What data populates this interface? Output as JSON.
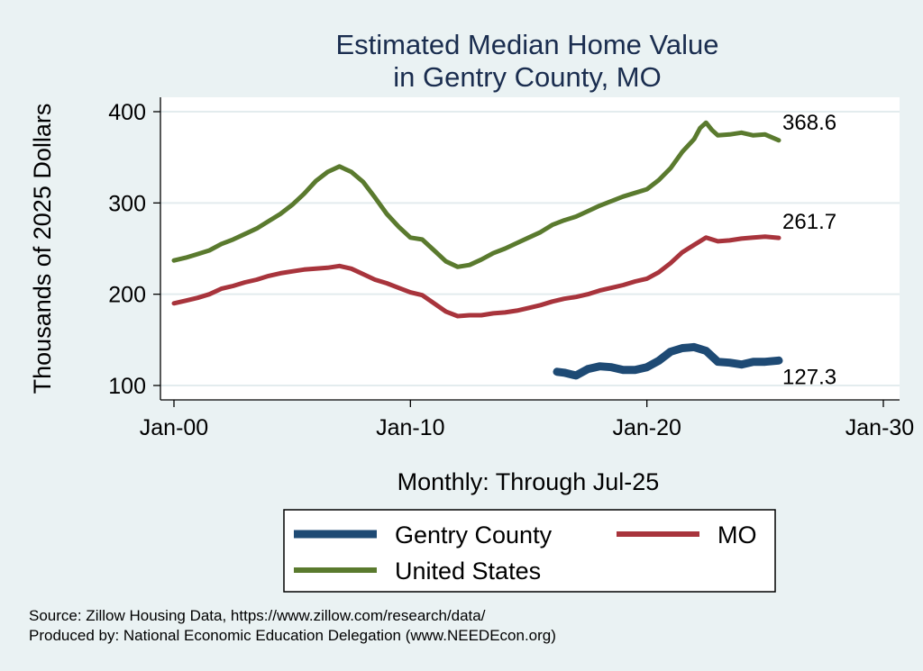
{
  "chart_data": {
    "type": "line",
    "title": [
      "Estimated Median Home Value",
      "in Gentry County, MO"
    ],
    "ylabel": "Thousands of 2025 Dollars",
    "xlabel": "Monthly: Through Jul-25",
    "x_ticks": [
      {
        "label": "Jan-00",
        "year": 2000
      },
      {
        "label": "Jan-10",
        "year": 2010
      },
      {
        "label": "Jan-20",
        "year": 2020
      },
      {
        "label": "Jan-30",
        "year": 2030
      }
    ],
    "y_ticks": [
      100,
      200,
      300,
      400
    ],
    "xlim": [
      2000,
      2030
    ],
    "ylim": [
      100,
      400
    ],
    "grid": "horizontal",
    "series": [
      {
        "name": "United States",
        "color": "#5a7a2e",
        "end_label": "368.6",
        "points": [
          [
            2000.0,
            237
          ],
          [
            2000.5,
            240
          ],
          [
            2001.0,
            244
          ],
          [
            2001.5,
            248
          ],
          [
            2002.0,
            255
          ],
          [
            2002.5,
            260
          ],
          [
            2003.0,
            266
          ],
          [
            2003.5,
            272
          ],
          [
            2004.0,
            280
          ],
          [
            2004.5,
            288
          ],
          [
            2005.0,
            298
          ],
          [
            2005.5,
            310
          ],
          [
            2006.0,
            324
          ],
          [
            2006.5,
            334
          ],
          [
            2007.0,
            340
          ],
          [
            2007.5,
            334
          ],
          [
            2008.0,
            323
          ],
          [
            2008.5,
            306
          ],
          [
            2009.0,
            288
          ],
          [
            2009.5,
            274
          ],
          [
            2010.0,
            262
          ],
          [
            2010.5,
            260
          ],
          [
            2011.0,
            248
          ],
          [
            2011.5,
            236
          ],
          [
            2012.0,
            230
          ],
          [
            2012.5,
            232
          ],
          [
            2013.0,
            238
          ],
          [
            2013.5,
            245
          ],
          [
            2014.0,
            250
          ],
          [
            2014.5,
            256
          ],
          [
            2015.0,
            262
          ],
          [
            2015.5,
            268
          ],
          [
            2016.0,
            276
          ],
          [
            2016.5,
            281
          ],
          [
            2017.0,
            285
          ],
          [
            2017.5,
            291
          ],
          [
            2018.0,
            297
          ],
          [
            2018.5,
            302
          ],
          [
            2019.0,
            307
          ],
          [
            2019.5,
            311
          ],
          [
            2020.0,
            315
          ],
          [
            2020.5,
            325
          ],
          [
            2021.0,
            338
          ],
          [
            2021.5,
            356
          ],
          [
            2022.0,
            370
          ],
          [
            2022.25,
            382
          ],
          [
            2022.5,
            388
          ],
          [
            2022.75,
            380
          ],
          [
            2023.0,
            374
          ],
          [
            2023.5,
            375
          ],
          [
            2024.0,
            377
          ],
          [
            2024.5,
            374
          ],
          [
            2025.0,
            375
          ],
          [
            2025.58,
            368.6
          ]
        ]
      },
      {
        "name": "MO",
        "color": "#a8343c",
        "end_label": "261.7",
        "points": [
          [
            2000.0,
            190
          ],
          [
            2000.5,
            193
          ],
          [
            2001.0,
            196
          ],
          [
            2001.5,
            200
          ],
          [
            2002.0,
            206
          ],
          [
            2002.5,
            209
          ],
          [
            2003.0,
            213
          ],
          [
            2003.5,
            216
          ],
          [
            2004.0,
            220
          ],
          [
            2004.5,
            223
          ],
          [
            2005.0,
            225
          ],
          [
            2005.5,
            227
          ],
          [
            2006.0,
            228
          ],
          [
            2006.5,
            229
          ],
          [
            2007.0,
            231
          ],
          [
            2007.5,
            228
          ],
          [
            2008.0,
            222
          ],
          [
            2008.5,
            216
          ],
          [
            2009.0,
            212
          ],
          [
            2009.5,
            207
          ],
          [
            2010.0,
            202
          ],
          [
            2010.5,
            199
          ],
          [
            2011.0,
            190
          ],
          [
            2011.5,
            181
          ],
          [
            2012.0,
            176
          ],
          [
            2012.5,
            177
          ],
          [
            2013.0,
            177
          ],
          [
            2013.5,
            179
          ],
          [
            2014.0,
            180
          ],
          [
            2014.5,
            182
          ],
          [
            2015.0,
            185
          ],
          [
            2015.5,
            188
          ],
          [
            2016.0,
            192
          ],
          [
            2016.5,
            195
          ],
          [
            2017.0,
            197
          ],
          [
            2017.5,
            200
          ],
          [
            2018.0,
            204
          ],
          [
            2018.5,
            207
          ],
          [
            2019.0,
            210
          ],
          [
            2019.5,
            214
          ],
          [
            2020.0,
            217
          ],
          [
            2020.5,
            224
          ],
          [
            2021.0,
            234
          ],
          [
            2021.5,
            246
          ],
          [
            2022.0,
            254
          ],
          [
            2022.5,
            262
          ],
          [
            2023.0,
            258
          ],
          [
            2023.5,
            259
          ],
          [
            2024.0,
            261
          ],
          [
            2024.5,
            262
          ],
          [
            2025.0,
            263
          ],
          [
            2025.58,
            261.7
          ]
        ]
      },
      {
        "name": "Gentry County",
        "color": "#1e4a74",
        "end_label": "127.3",
        "points": [
          [
            2016.2,
            115
          ],
          [
            2016.5,
            114
          ],
          [
            2017.0,
            111
          ],
          [
            2017.5,
            118
          ],
          [
            2018.0,
            121
          ],
          [
            2018.5,
            120
          ],
          [
            2019.0,
            117
          ],
          [
            2019.5,
            117
          ],
          [
            2020.0,
            120
          ],
          [
            2020.5,
            127
          ],
          [
            2021.0,
            137
          ],
          [
            2021.5,
            141
          ],
          [
            2022.0,
            142
          ],
          [
            2022.5,
            138
          ],
          [
            2023.0,
            126
          ],
          [
            2023.5,
            125
          ],
          [
            2024.0,
            123
          ],
          [
            2024.5,
            126
          ],
          [
            2025.0,
            126
          ],
          [
            2025.58,
            127.3
          ]
        ]
      }
    ],
    "legend": {
      "placement": "bottom",
      "items": [
        "Gentry County",
        "MO",
        "United States"
      ]
    }
  },
  "source_lines": [
    "Source: Zillow Housing Data, https://www.zillow.com/research/data/",
    "Produced by: National Economic Education Delegation (www.NEEDEcon.org)"
  ]
}
